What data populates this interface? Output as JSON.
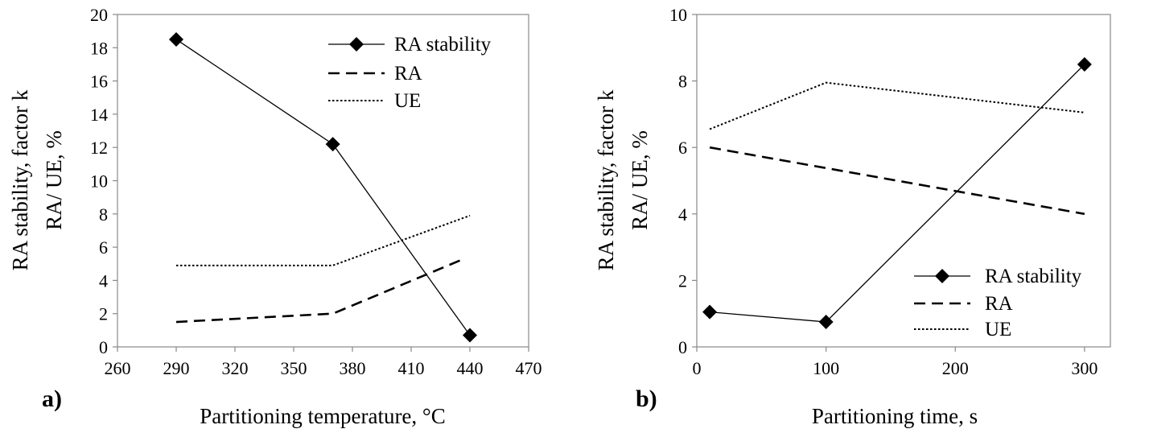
{
  "chart_data": [
    {
      "type": "line",
      "panel_label": "a)",
      "xlabel": "Partitioning temperature, °C",
      "ylabel_lines": [
        "RA stability, factor k",
        "RA/ UE, %"
      ],
      "xlim": [
        260,
        470
      ],
      "ylim": [
        0,
        20
      ],
      "xticks": [
        "260",
        "290",
        "320",
        "350",
        "380",
        "410",
        "440",
        "470"
      ],
      "yticks": [
        "0",
        "2",
        "4",
        "6",
        "8",
        "10",
        "12",
        "14",
        "16",
        "18",
        "20"
      ],
      "grid": false,
      "legend_position": "top-right",
      "series": [
        {
          "name": "RA stability",
          "style": "solid-diamond",
          "x": [
            290,
            370,
            440
          ],
          "y": [
            18.5,
            12.2,
            0.7
          ]
        },
        {
          "name": "RA",
          "style": "dashed",
          "x": [
            290,
            370,
            437
          ],
          "y": [
            1.5,
            2.0,
            5.3
          ]
        },
        {
          "name": "UE",
          "style": "dotted",
          "x": [
            290,
            370,
            440
          ],
          "y": [
            4.9,
            4.9,
            7.9
          ]
        }
      ]
    },
    {
      "type": "line",
      "panel_label": "b)",
      "xlabel": "Partitioning time, s",
      "ylabel_lines": [
        "RA stability, factor k",
        "RA/ UE, %"
      ],
      "xlim": [
        0,
        320
      ],
      "ylim": [
        0,
        10
      ],
      "xticks": [
        "0",
        "100",
        "200",
        "300"
      ],
      "yticks": [
        "0",
        "2",
        "4",
        "6",
        "8",
        "10"
      ],
      "grid": false,
      "legend_position": "bottom-right",
      "series": [
        {
          "name": "RA stability",
          "style": "solid-diamond",
          "x": [
            10,
            100,
            300
          ],
          "y": [
            1.05,
            0.75,
            8.5
          ]
        },
        {
          "name": "RA",
          "style": "dashed",
          "x": [
            10,
            300
          ],
          "y": [
            6.0,
            4.0
          ]
        },
        {
          "name": "UE",
          "style": "dotted",
          "x": [
            10,
            100,
            300
          ],
          "y": [
            6.55,
            7.95,
            7.05
          ]
        }
      ]
    }
  ]
}
